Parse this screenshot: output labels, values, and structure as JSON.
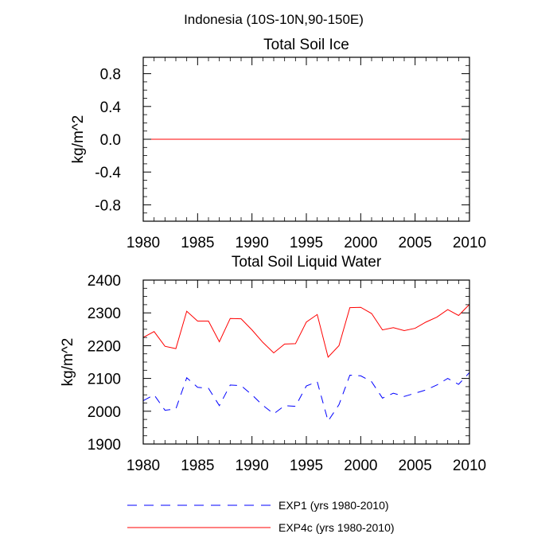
{
  "figure": {
    "title": "Indonesia (10S-10N,90-150E)"
  },
  "chart_data": [
    {
      "type": "line",
      "title": "Total Soil Ice",
      "xlabel": "",
      "ylabel": "kg/m^2",
      "xlim": [
        1980,
        2010
      ],
      "ylim": [
        -1.0,
        1.0
      ],
      "xticks": [
        1980,
        1985,
        1990,
        1995,
        2000,
        2005,
        2010
      ],
      "xtick_labels": [
        "1980",
        "1985",
        "1990",
        "1995",
        "2000",
        "2005",
        "2010"
      ],
      "yticks": [
        0.8,
        0.4,
        0.0,
        -0.4,
        -0.8
      ],
      "ytick_labels": [
        "0.8",
        "0.4",
        "0.0",
        "-0.4",
        "-0.8"
      ],
      "grid": false,
      "x": [
        1980,
        2010
      ],
      "series": [
        {
          "name": "EXP1 (yrs 1980-2010)",
          "color": "#0000ff",
          "style": "dashed",
          "values": [
            0,
            0
          ]
        },
        {
          "name": "EXP4c (yrs 1980-2010)",
          "color": "#ff0000",
          "style": "solid",
          "values": [
            0,
            0
          ]
        }
      ]
    },
    {
      "type": "line",
      "title": "Total Soil Liquid Water",
      "xlabel": "",
      "ylabel": "kg/m^2",
      "xlim": [
        1980,
        2010
      ],
      "ylim": [
        1900,
        2400
      ],
      "xticks": [
        1980,
        1985,
        1990,
        1995,
        2000,
        2005,
        2010
      ],
      "xtick_labels": [
        "1980",
        "1985",
        "1990",
        "1995",
        "2000",
        "2005",
        "2010"
      ],
      "yticks": [
        2400,
        2300,
        2200,
        2100,
        2000,
        1900
      ],
      "ytick_labels": [
        "2400",
        "2300",
        "2200",
        "2100",
        "2000",
        "1900"
      ],
      "grid": false,
      "x": [
        1980,
        1981,
        1982,
        1983,
        1984,
        1985,
        1986,
        1987,
        1988,
        1989,
        1990,
        1991,
        1992,
        1993,
        1994,
        1995,
        1996,
        1997,
        1998,
        1999,
        2000,
        2001,
        2002,
        2003,
        2004,
        2005,
        2006,
        2007,
        2008,
        2009,
        2010
      ],
      "series": [
        {
          "name": "EXP1 (yrs 1980-2010)",
          "color": "#0000ff",
          "style": "dashed",
          "values": [
            2032,
            2050,
            2003,
            2007,
            2102,
            2073,
            2070,
            2017,
            2080,
            2078,
            2050,
            2018,
            1992,
            2017,
            2015,
            2077,
            2090,
            1970,
            2020,
            2110,
            2108,
            2090,
            2040,
            2055,
            2045,
            2055,
            2065,
            2080,
            2100,
            2082,
            2118
          ]
        },
        {
          "name": "EXP4c (yrs 1980-2010)",
          "color": "#ff0000",
          "style": "solid",
          "values": [
            2225,
            2243,
            2198,
            2191,
            2305,
            2275,
            2275,
            2212,
            2283,
            2282,
            2248,
            2210,
            2178,
            2205,
            2206,
            2272,
            2295,
            2165,
            2200,
            2316,
            2317,
            2298,
            2248,
            2255,
            2246,
            2253,
            2272,
            2287,
            2310,
            2292,
            2326
          ]
        }
      ],
      "legend": "below"
    }
  ],
  "legend": {
    "items": [
      {
        "label": "EXP1 (yrs 1980-2010)",
        "color": "#0000ff",
        "style": "dashed"
      },
      {
        "label": "EXP4c (yrs 1980-2010)",
        "color": "#ff0000",
        "style": "solid"
      }
    ]
  }
}
